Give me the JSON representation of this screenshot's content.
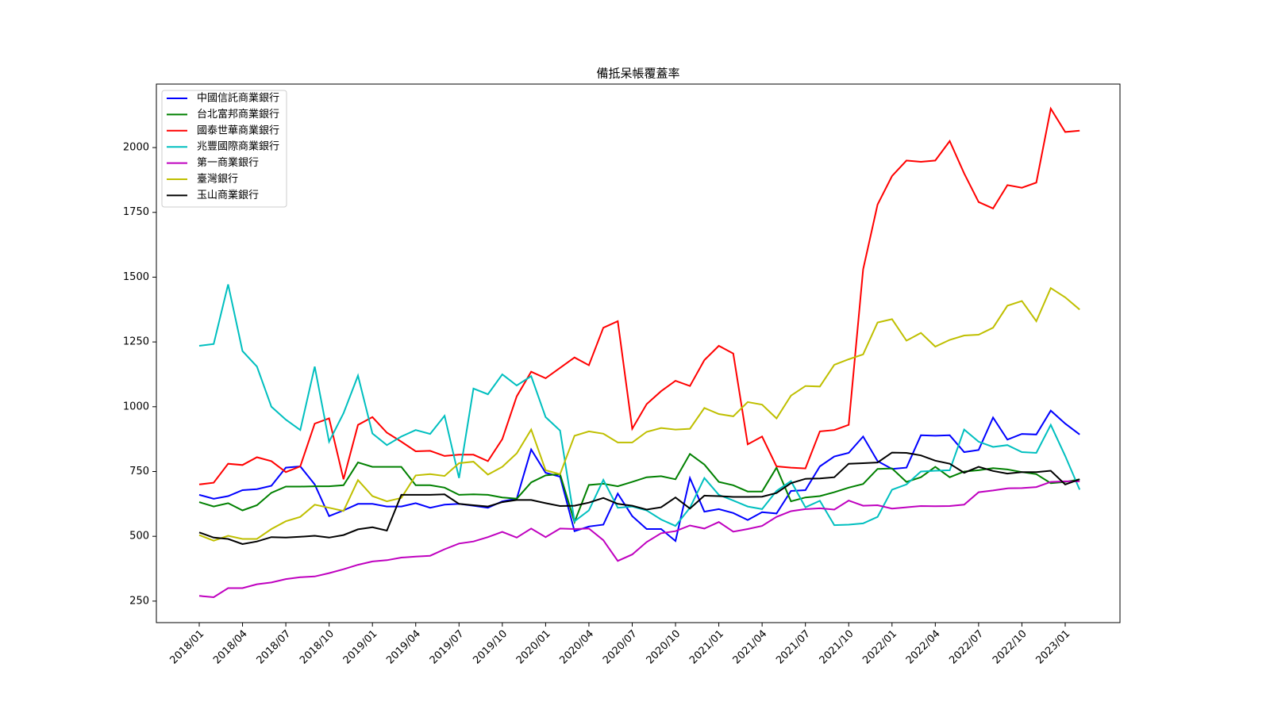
{
  "chart_data": {
    "type": "line",
    "title": "備抵呆帳覆蓋率",
    "categories": [
      "2018/01",
      null,
      null,
      "2018/04",
      null,
      null,
      "2018/07",
      null,
      null,
      "2018/10",
      null,
      null,
      "2019/01",
      null,
      null,
      "2019/04",
      null,
      null,
      "2019/07",
      null,
      null,
      "2019/10",
      null,
      null,
      "2020/01",
      null,
      null,
      "2020/04",
      null,
      null,
      "2020/07",
      null,
      null,
      "2020/10",
      null,
      null,
      "2021/01",
      null,
      null,
      "2021/04",
      null,
      null,
      "2021/07",
      null,
      null,
      "2021/10",
      null,
      null,
      "2022/01",
      null,
      null,
      "2022/04",
      null,
      null,
      "2022/07",
      null,
      null,
      "2022/10",
      null,
      null,
      "2023/01",
      null
    ],
    "ylim": [
      167,
      2245
    ],
    "yticks": [
      250,
      500,
      750,
      1000,
      1250,
      1500,
      1750,
      2000
    ],
    "legend": "upper left",
    "series": [
      {
        "name": "中國信託商業銀行",
        "color": "#0000ff",
        "values": [
          660,
          645,
          655,
          678,
          682,
          695,
          765,
          770,
          700,
          578,
          600,
          625,
          625,
          615,
          615,
          628,
          610,
          622,
          625,
          618,
          610,
          635,
          645,
          835,
          745,
          730,
          520,
          538,
          545,
          665,
          578,
          528,
          528,
          482,
          725,
          595,
          605,
          590,
          563,
          593,
          588,
          675,
          678,
          770,
          808,
          822,
          885,
          790,
          760,
          765,
          890,
          888,
          890,
          825,
          833,
          958,
          873,
          895,
          893,
          985,
          935,
          893
        ]
      },
      {
        "name": "台北富邦商業銀行",
        "color": "#008000",
        "values": [
          632,
          615,
          628,
          600,
          620,
          668,
          692,
          692,
          693,
          693,
          697,
          785,
          768,
          768,
          768,
          697,
          697,
          688,
          660,
          662,
          660,
          650,
          645,
          708,
          735,
          740,
          555,
          698,
          703,
          693,
          710,
          728,
          732,
          720,
          818,
          777,
          710,
          697,
          673,
          673,
          765,
          635,
          650,
          655,
          670,
          688,
          702,
          760,
          762,
          710,
          728,
          768,
          728,
          750,
          755,
          763,
          758,
          748,
          740,
          705,
          710,
          720
        ]
      },
      {
        "name": "國泰世華商業銀行",
        "color": "#ff0000",
        "values": [
          700,
          707,
          780,
          775,
          805,
          790,
          748,
          770,
          935,
          955,
          720,
          930,
          960,
          900,
          865,
          828,
          830,
          810,
          815,
          815,
          790,
          875,
          1040,
          1135,
          1110,
          1150,
          1190,
          1160,
          1305,
          1330,
          915,
          1010,
          1060,
          1100,
          1080,
          1180,
          1235,
          1205,
          855,
          885,
          770,
          765,
          762,
          905,
          910,
          930,
          1530,
          1780,
          1890,
          1950,
          1945,
          1950,
          2025,
          1900,
          1790,
          1765,
          1855,
          1845,
          1865,
          2150,
          2060,
          2065
        ]
      },
      {
        "name": "兆豐國際商業銀行",
        "color": "#00bfbf",
        "values": [
          1235,
          1242,
          1472,
          1215,
          1155,
          1000,
          950,
          910,
          1155,
          865,
          975,
          1120,
          897,
          852,
          885,
          910,
          895,
          965,
          725,
          1070,
          1048,
          1125,
          1082,
          1118,
          960,
          908,
          558,
          600,
          718,
          610,
          615,
          600,
          565,
          540,
          610,
          725,
          660,
          638,
          615,
          605,
          675,
          713,
          612,
          637,
          543,
          545,
          550,
          575,
          680,
          700,
          750,
          753,
          755,
          912,
          865,
          845,
          852,
          825,
          822,
          930,
          810,
          680
        ]
      },
      {
        "name": "第一商業銀行",
        "color": "#bf00bf",
        "values": [
          270,
          265,
          300,
          300,
          315,
          322,
          335,
          342,
          345,
          358,
          373,
          390,
          403,
          408,
          418,
          422,
          425,
          450,
          472,
          480,
          497,
          517,
          495,
          530,
          497,
          530,
          528,
          530,
          485,
          405,
          430,
          478,
          512,
          520,
          542,
          530,
          555,
          518,
          528,
          540,
          575,
          597,
          605,
          608,
          603,
          638,
          618,
          620,
          607,
          612,
          617,
          616,
          617,
          622,
          670,
          677,
          685,
          686,
          690,
          710,
          712,
          712
        ]
      },
      {
        "name": "臺灣銀行",
        "color": "#bfbf00",
        "values": [
          505,
          483,
          502,
          490,
          490,
          528,
          558,
          575,
          622,
          610,
          598,
          717,
          655,
          635,
          648,
          735,
          740,
          733,
          782,
          788,
          738,
          768,
          820,
          912,
          755,
          740,
          888,
          905,
          896,
          862,
          862,
          903,
          918,
          912,
          915,
          995,
          972,
          963,
          1018,
          1008,
          955,
          1043,
          1080,
          1078,
          1162,
          1183,
          1202,
          1325,
          1338,
          1255,
          1285,
          1232,
          1258,
          1275,
          1278,
          1305,
          1390,
          1408,
          1330,
          1458,
          1422,
          1375
        ]
      },
      {
        "name": "玉山商業銀行",
        "color": "#000000",
        "values": [
          515,
          495,
          490,
          470,
          480,
          497,
          495,
          498,
          502,
          495,
          505,
          527,
          535,
          522,
          660,
          660,
          660,
          662,
          625,
          620,
          615,
          632,
          640,
          640,
          628,
          617,
          618,
          630,
          648,
          625,
          618,
          603,
          612,
          650,
          607,
          657,
          655,
          652,
          652,
          653,
          667,
          705,
          722,
          723,
          728,
          780,
          782,
          785,
          823,
          822,
          812,
          792,
          780,
          745,
          768,
          752,
          742,
          748,
          748,
          753,
          700,
          720
        ]
      }
    ]
  }
}
